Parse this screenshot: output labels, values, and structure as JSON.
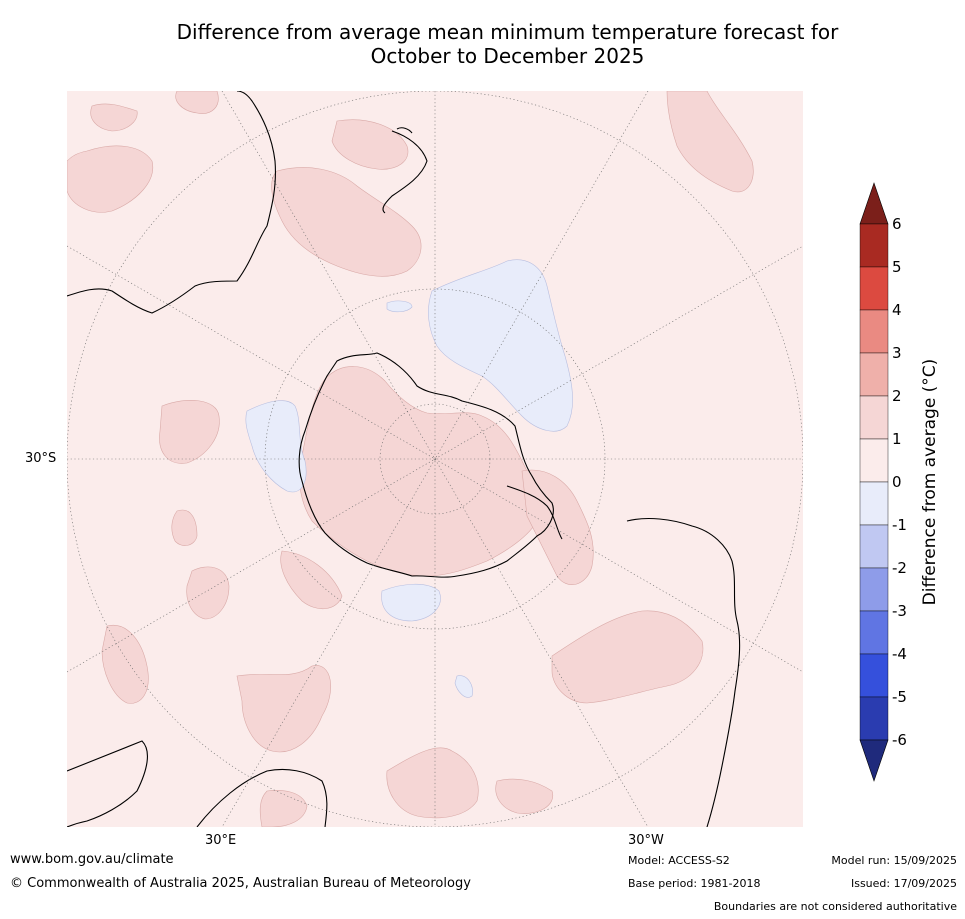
{
  "title": {
    "line1": "Difference from average mean minimum temperature forecast for",
    "line2": "October to December 2025"
  },
  "map": {
    "projection": "south-polar-stereographic",
    "lat_label": "30°S",
    "lon_labels": {
      "east": "30°E",
      "west": "30°W"
    },
    "ocean_color": "#fbeceb",
    "anomaly_colors": {
      "0 to 1": "#fbeceb",
      "1 to 2": "#f5d6d5",
      "-1 to 0": "#e8ecfa"
    }
  },
  "colorbar": {
    "label": "Difference from average (°C)",
    "ticks": [
      "6",
      "5",
      "4",
      "3",
      "2",
      "1",
      "0",
      "-1",
      "-2",
      "-3",
      "-4",
      "-5",
      "-6"
    ],
    "segments": [
      {
        "range": "above 6",
        "color": "#7b1f1a"
      },
      {
        "range": "5 to 6",
        "color": "#a92a22"
      },
      {
        "range": "4 to 5",
        "color": "#dc4a40"
      },
      {
        "range": "3 to 4",
        "color": "#ea8a82"
      },
      {
        "range": "2 to 3",
        "color": "#efb0aa"
      },
      {
        "range": "1 to 2",
        "color": "#f5d6d5"
      },
      {
        "range": "0 to 1",
        "color": "#fbeceb"
      },
      {
        "range": "-1 to 0",
        "color": "#e8ecfa"
      },
      {
        "range": "-2 to -1",
        "color": "#c0c8f2"
      },
      {
        "range": "-3 to -2",
        "color": "#8e9ce9"
      },
      {
        "range": "-4 to -3",
        "color": "#6075e3"
      },
      {
        "range": "-5 to -4",
        "color": "#3550dc"
      },
      {
        "range": "-6 to -5",
        "color": "#2a3cb0"
      },
      {
        "range": "below -6",
        "color": "#1f2a7c"
      }
    ]
  },
  "footer": {
    "website": "www.bom.gov.au/climate",
    "copyright": "© Commonwealth of Australia 2025, Australian Bureau of Meteorology",
    "model": "Model: ACCESS-S2",
    "base_period": "Base period: 1981-2018",
    "model_run": "Model run: 15/09/2025",
    "issued": "Issued: 17/09/2025",
    "disclaimer": "Boundaries are not considered authoritative"
  }
}
